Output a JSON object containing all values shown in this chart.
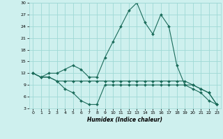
{
  "xlabel": "Humidex (Indice chaleur)",
  "x_values": [
    0,
    1,
    2,
    3,
    4,
    5,
    6,
    7,
    8,
    9,
    10,
    11,
    12,
    13,
    14,
    15,
    16,
    17,
    18,
    19,
    20,
    21,
    22,
    23
  ],
  "line1": [
    12,
    11,
    11,
    10,
    10,
    10,
    10,
    10,
    10,
    10,
    10,
    10,
    10,
    10,
    10,
    10,
    10,
    10,
    10,
    10,
    9,
    8,
    7,
    4
  ],
  "line2": [
    12,
    11,
    11,
    10,
    8,
    7,
    5,
    4,
    4,
    9,
    9,
    9,
    9,
    9,
    9,
    9,
    9,
    9,
    9,
    9,
    8,
    7,
    5,
    4
  ],
  "line3": [
    12,
    11,
    12,
    12,
    13,
    14,
    13,
    11,
    11,
    16,
    20,
    24,
    28,
    30,
    25,
    22,
    27,
    24,
    14,
    9,
    9,
    8,
    7,
    4
  ],
  "bg_color": "#cef0ee",
  "grid_color": "#9fd9d5",
  "line_color": "#1a6b5a",
  "ylim": [
    3,
    30
  ],
  "yticks": [
    3,
    6,
    9,
    12,
    15,
    18,
    21,
    24,
    27,
    30
  ],
  "xlim": [
    -0.5,
    23.5
  ]
}
